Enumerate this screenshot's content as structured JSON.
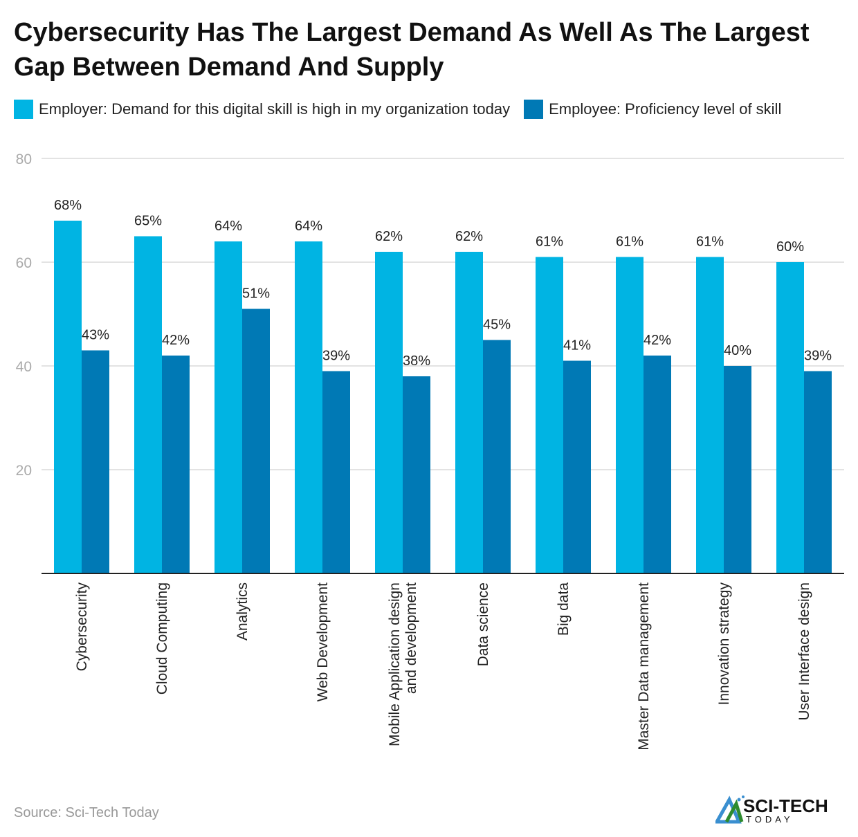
{
  "chart_data": {
    "type": "bar",
    "title": "Cybersecurity Has The Largest Demand As Well As The Largest Gap Between Demand And Supply",
    "categories": [
      "Cybersecurity",
      "Cloud Computing",
      "Analytics",
      "Web Development",
      "Mobile Application design and development",
      "Data science",
      "Big data",
      "Master Data management",
      "Innovation strategy",
      "User Interface design"
    ],
    "category_lines": [
      [
        "Cybersecurity"
      ],
      [
        "Cloud Computing"
      ],
      [
        "Analytics"
      ],
      [
        "Web Development"
      ],
      [
        "Mobile Application design",
        "and development"
      ],
      [
        "Data science"
      ],
      [
        "Big data"
      ],
      [
        "Master Data management"
      ],
      [
        "Innovation strategy"
      ],
      [
        "User Interface design"
      ]
    ],
    "series": [
      {
        "name": "Employer: Demand for this digital skill is high in my organization today",
        "color": "#00b4e3",
        "values": [
          68,
          65,
          64,
          64,
          62,
          62,
          61,
          61,
          61,
          60
        ]
      },
      {
        "name": "Employee: Proficiency level of skill",
        "color": "#0079b5",
        "values": [
          43,
          42,
          51,
          39,
          38,
          45,
          41,
          42,
          40,
          39
        ]
      }
    ],
    "data_label_suffix": "%",
    "yticks": [
      20,
      40,
      60,
      80
    ],
    "ylim": [
      0,
      80
    ],
    "grid": true,
    "legend": "top-left",
    "xlabel": "",
    "ylabel": ""
  },
  "source": "Source: Sci-Tech Today",
  "logo": {
    "text": "SCI-TECH",
    "subtext": "TODAY"
  }
}
